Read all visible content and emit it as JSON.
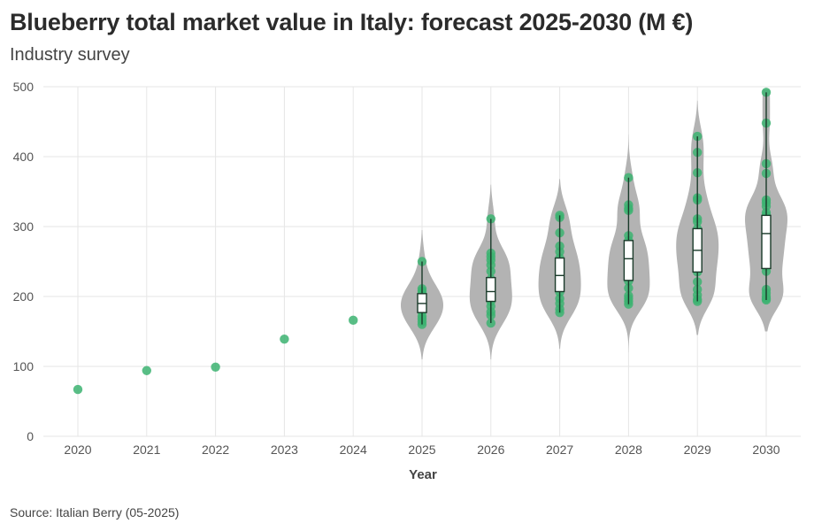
{
  "chart_data": {
    "type": "violin",
    "title": "Blueberry total market value in Italy: forecast 2025-2030 (M €)",
    "subtitle": "Industry survey",
    "source": "Source: Italian Berry (05-2025)",
    "xlabel": "Year",
    "ylabel": "",
    "ylim": [
      0,
      500
    ],
    "yticks": [
      0,
      100,
      200,
      300,
      400,
      500
    ],
    "categories": [
      "2020",
      "2021",
      "2022",
      "2023",
      "2024",
      "2025",
      "2026",
      "2027",
      "2028",
      "2029",
      "2030"
    ],
    "grid": true,
    "colors": {
      "point": "#3cb371",
      "violin": "#b3b3b3",
      "box_fill": "#ffffff",
      "box_stroke": "#1a3a2a",
      "grid": "#e6e6e6"
    },
    "historical": [
      {
        "x": "2020",
        "y": 67
      },
      {
        "x": "2021",
        "y": 94
      },
      {
        "x": "2022",
        "y": 99
      },
      {
        "x": "2023",
        "y": 139
      },
      {
        "x": "2024",
        "y": 166
      }
    ],
    "forecast": [
      {
        "x": "2025",
        "range": [
          110,
          295
        ],
        "box": {
          "q1": 177,
          "median": 190,
          "q3": 204
        },
        "points": [
          250,
          211,
          208,
          205,
          200,
          196,
          190,
          186,
          178,
          172,
          168,
          164,
          160
        ]
      },
      {
        "x": "2026",
        "range": [
          110,
          360
        ],
        "box": {
          "q1": 193,
          "median": 207,
          "q3": 227
        },
        "points": [
          311,
          262,
          257,
          252,
          245,
          236,
          225,
          215,
          207,
          200,
          193,
          186,
          178,
          173,
          162
        ]
      },
      {
        "x": "2027",
        "range": [
          125,
          368
        ],
        "box": {
          "q1": 207,
          "median": 230,
          "q3": 255
        },
        "points": [
          316,
          313,
          291,
          272,
          264,
          255,
          246,
          238,
          230,
          222,
          213,
          206,
          197,
          190,
          182,
          177
        ]
      },
      {
        "x": "2028",
        "range": [
          120,
          432
        ],
        "box": {
          "q1": 223,
          "median": 254,
          "q3": 280
        },
        "points": [
          370,
          331,
          326,
          323,
          287,
          280,
          272,
          263,
          254,
          246,
          237,
          229,
          222,
          212,
          201,
          197,
          193,
          189
        ]
      },
      {
        "x": "2029",
        "range": [
          145,
          480
        ],
        "box": {
          "q1": 235,
          "median": 266,
          "q3": 297
        },
        "points": [
          429,
          406,
          377,
          341,
          338,
          311,
          307,
          297,
          290,
          282,
          275,
          266,
          258,
          250,
          243,
          235,
          221,
          210,
          202,
          196,
          193
        ]
      },
      {
        "x": "2030",
        "range": [
          150,
          496
        ],
        "box": {
          "q1": 240,
          "median": 290,
          "q3": 316
        },
        "points": [
          492,
          448,
          390,
          376,
          338,
          334,
          329,
          320,
          316,
          307,
          299,
          290,
          281,
          272,
          262,
          252,
          243,
          236,
          210,
          205,
          200,
          197,
          195
        ]
      }
    ]
  }
}
